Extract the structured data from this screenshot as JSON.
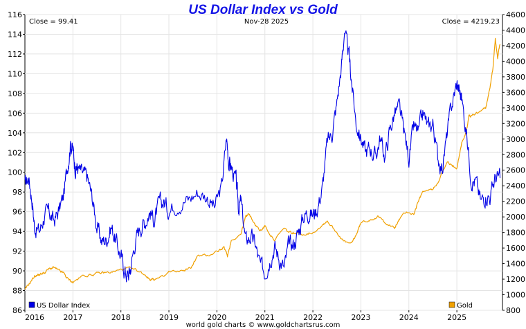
{
  "chart_data": {
    "type": "line",
    "title": "US Dollar Index vs Gold",
    "date_label": "Nov-28  2025",
    "close_left": "Close = 99.41",
    "close_right": "Close = 4219.23",
    "footer": "world gold charts © www.goldchartsrus.com",
    "x_range": [
      2016.0,
      2025.95
    ],
    "x_ticks": [
      "2016",
      "2017",
      "2018",
      "2019",
      "2020",
      "2021",
      "2022",
      "2023",
      "2024",
      "2025"
    ],
    "y_left": {
      "label": "US Dollar Index",
      "range": [
        86,
        116
      ],
      "ticks": [
        "86",
        "88",
        "90",
        "92",
        "94",
        "96",
        "98",
        "100",
        "102",
        "104",
        "106",
        "108",
        "110",
        "112",
        "114",
        "116"
      ]
    },
    "y_right": {
      "label": "Gold",
      "range": [
        800,
        4600
      ],
      "ticks": [
        "800",
        "1000",
        "1200",
        "1400",
        "1600",
        "1800",
        "2000",
        "2200",
        "2400",
        "2600",
        "2800",
        "3000",
        "3200",
        "3400",
        "3600",
        "3800",
        "4000",
        "4200",
        "4400",
        "4600"
      ]
    },
    "series": [
      {
        "name": "US Dollar Index",
        "axis": "left",
        "color": "#0000e6",
        "x": [
          2016.0,
          2016.08,
          2016.15,
          2016.2,
          2016.3,
          2016.4,
          2016.5,
          2016.6,
          2016.7,
          2016.8,
          2016.9,
          2016.95,
          2017.0,
          2017.05,
          2017.1,
          2017.2,
          2017.3,
          2017.4,
          2017.5,
          2017.6,
          2017.7,
          2017.8,
          2017.9,
          2018.0,
          2018.08,
          2018.15,
          2018.2,
          2018.3,
          2018.4,
          2018.5,
          2018.6,
          2018.7,
          2018.8,
          2018.9,
          2019.0,
          2019.2,
          2019.4,
          2019.6,
          2019.8,
          2019.95,
          2020.1,
          2020.2,
          2020.25,
          2020.3,
          2020.4,
          2020.45,
          2020.5,
          2020.6,
          2020.7,
          2020.8,
          2020.9,
          2021.0,
          2021.1,
          2021.2,
          2021.3,
          2021.4,
          2021.5,
          2021.6,
          2021.7,
          2021.8,
          2021.9,
          2022.0,
          2022.1,
          2022.2,
          2022.3,
          2022.4,
          2022.5,
          2022.6,
          2022.65,
          2022.75,
          2022.8,
          2022.9,
          2023.0,
          2023.1,
          2023.2,
          2023.3,
          2023.4,
          2023.5,
          2023.6,
          2023.7,
          2023.8,
          2023.9,
          2024.0,
          2024.1,
          2024.2,
          2024.3,
          2024.4,
          2024.5,
          2024.6,
          2024.7,
          2024.8,
          2024.9,
          2025.0,
          2025.05,
          2025.1,
          2025.2,
          2025.3,
          2025.4,
          2025.5,
          2025.6,
          2025.7,
          2025.8,
          2025.9
        ],
        "y": [
          98.7,
          99.5,
          97.2,
          94.5,
          94.0,
          95.5,
          96.0,
          95.0,
          96.0,
          97.5,
          101.0,
          103.0,
          102.3,
          100.5,
          100.5,
          99.8,
          99.5,
          97.5,
          94.5,
          93.0,
          93.2,
          94.5,
          93.0,
          91.5,
          90.0,
          89.5,
          90.3,
          93.0,
          94.5,
          95.0,
          96.0,
          95.2,
          96.8,
          97.0,
          96.2,
          97.0,
          97.2,
          98.0,
          97.5,
          96.4,
          98.5,
          103.5,
          101.0,
          100.5,
          99.0,
          96.5,
          97.0,
          93.0,
          93.5,
          92.7,
          90.5,
          89.9,
          91.2,
          92.5,
          91.3,
          90.2,
          92.6,
          92.7,
          94.0,
          95.5,
          96.0,
          95.7,
          96.5,
          98.5,
          103.0,
          104.0,
          107.0,
          111.0,
          114.0,
          112.0,
          109.5,
          105.0,
          103.5,
          102.0,
          102.5,
          101.5,
          103.5,
          101.5,
          104.2,
          106.0,
          106.5,
          104.0,
          101.5,
          104.5,
          104.0,
          106.0,
          104.5,
          105.0,
          101.5,
          100.5,
          104.0,
          107.0,
          109.0,
          108.3,
          107.5,
          104.0,
          99.5,
          99.0,
          97.0,
          97.8,
          97.6,
          99.5,
          99.41
        ]
      },
      {
        "name": "Gold",
        "axis": "right",
        "color": "#f0a000",
        "x": [
          2016.0,
          2016.1,
          2016.2,
          2016.3,
          2016.4,
          2016.5,
          2016.6,
          2016.7,
          2016.8,
          2016.9,
          2017.0,
          2017.2,
          2017.4,
          2017.6,
          2017.8,
          2018.0,
          2018.15,
          2018.3,
          2018.5,
          2018.6,
          2018.7,
          2018.9,
          2019.0,
          2019.3,
          2019.45,
          2019.6,
          2019.8,
          2020.0,
          2020.15,
          2020.22,
          2020.3,
          2020.5,
          2020.6,
          2020.65,
          2020.8,
          2020.9,
          2021.0,
          2021.2,
          2021.4,
          2021.5,
          2021.6,
          2021.8,
          2022.0,
          2022.2,
          2022.3,
          2022.5,
          2022.65,
          2022.8,
          2022.9,
          2023.0,
          2023.2,
          2023.35,
          2023.5,
          2023.7,
          2023.8,
          2023.95,
          2024.1,
          2024.2,
          2024.3,
          2024.5,
          2024.6,
          2024.8,
          2024.9,
          2025.0,
          2025.1,
          2025.2,
          2025.25,
          2025.3,
          2025.45,
          2025.6,
          2025.7,
          2025.75,
          2025.8,
          2025.85,
          2025.9
        ],
        "y": [
          1060,
          1150,
          1240,
          1260,
          1280,
          1330,
          1350,
          1310,
          1280,
          1200,
          1160,
          1240,
          1260,
          1280,
          1290,
          1320,
          1340,
          1320,
          1260,
          1200,
          1200,
          1230,
          1290,
          1310,
          1340,
          1500,
          1500,
          1560,
          1600,
          1500,
          1700,
          1780,
          2000,
          2050,
          1900,
          1820,
          1880,
          1700,
          1850,
          1800,
          1790,
          1780,
          1800,
          1900,
          1950,
          1800,
          1680,
          1650,
          1770,
          1920,
          1970,
          2000,
          1940,
          1850,
          1970,
          2070,
          2030,
          2200,
          2330,
          2350,
          2450,
          2700,
          2650,
          2640,
          2950,
          3100,
          3300,
          3300,
          3350,
          3400,
          3700,
          3900,
          4300,
          4050,
          4219
        ]
      }
    ]
  }
}
